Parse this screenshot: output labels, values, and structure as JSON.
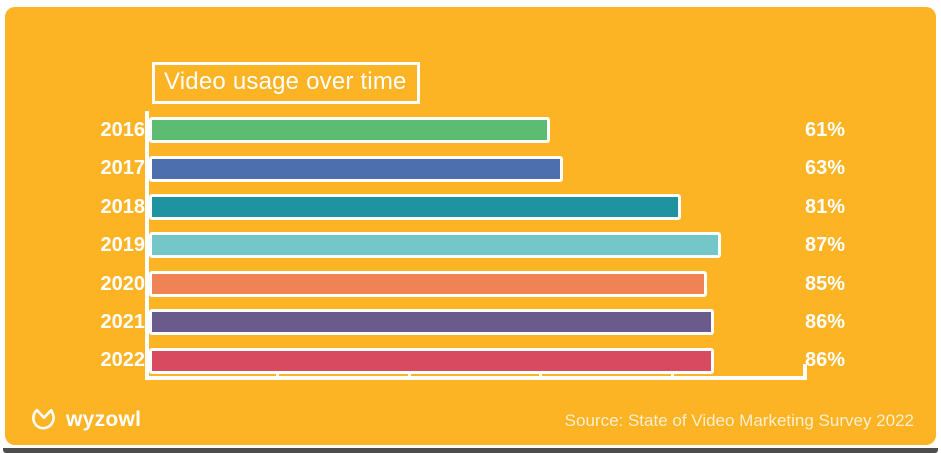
{
  "title": "Video usage over time",
  "footer": {
    "brand": "wyzowl",
    "source": "Source: State of Video Marketing Survey 2022"
  },
  "colors": {
    "background": "#FCB324",
    "axis": "#FFFFFF",
    "text": "#FFFFFF",
    "bottom_strip": "#4D4D4D"
  },
  "chart_data": {
    "type": "bar",
    "orientation": "horizontal",
    "title": "Video usage over time",
    "categories": [
      "2016",
      "2017",
      "2018",
      "2019",
      "2020",
      "2021",
      "2022"
    ],
    "values": [
      61,
      63,
      81,
      87,
      85,
      86,
      86
    ],
    "value_labels": [
      "61%",
      "63%",
      "81%",
      "87%",
      "85%",
      "86%",
      "86%"
    ],
    "bar_colors": [
      "#5CBC72",
      "#4D6FAE",
      "#1F939F",
      "#74C7C9",
      "#EF8355",
      "#6B5B8C",
      "#D84A60"
    ],
    "xlim": [
      0,
      100
    ],
    "x_tick_interval": 20,
    "grid": false,
    "legend": "none",
    "value_label_position": "right"
  }
}
